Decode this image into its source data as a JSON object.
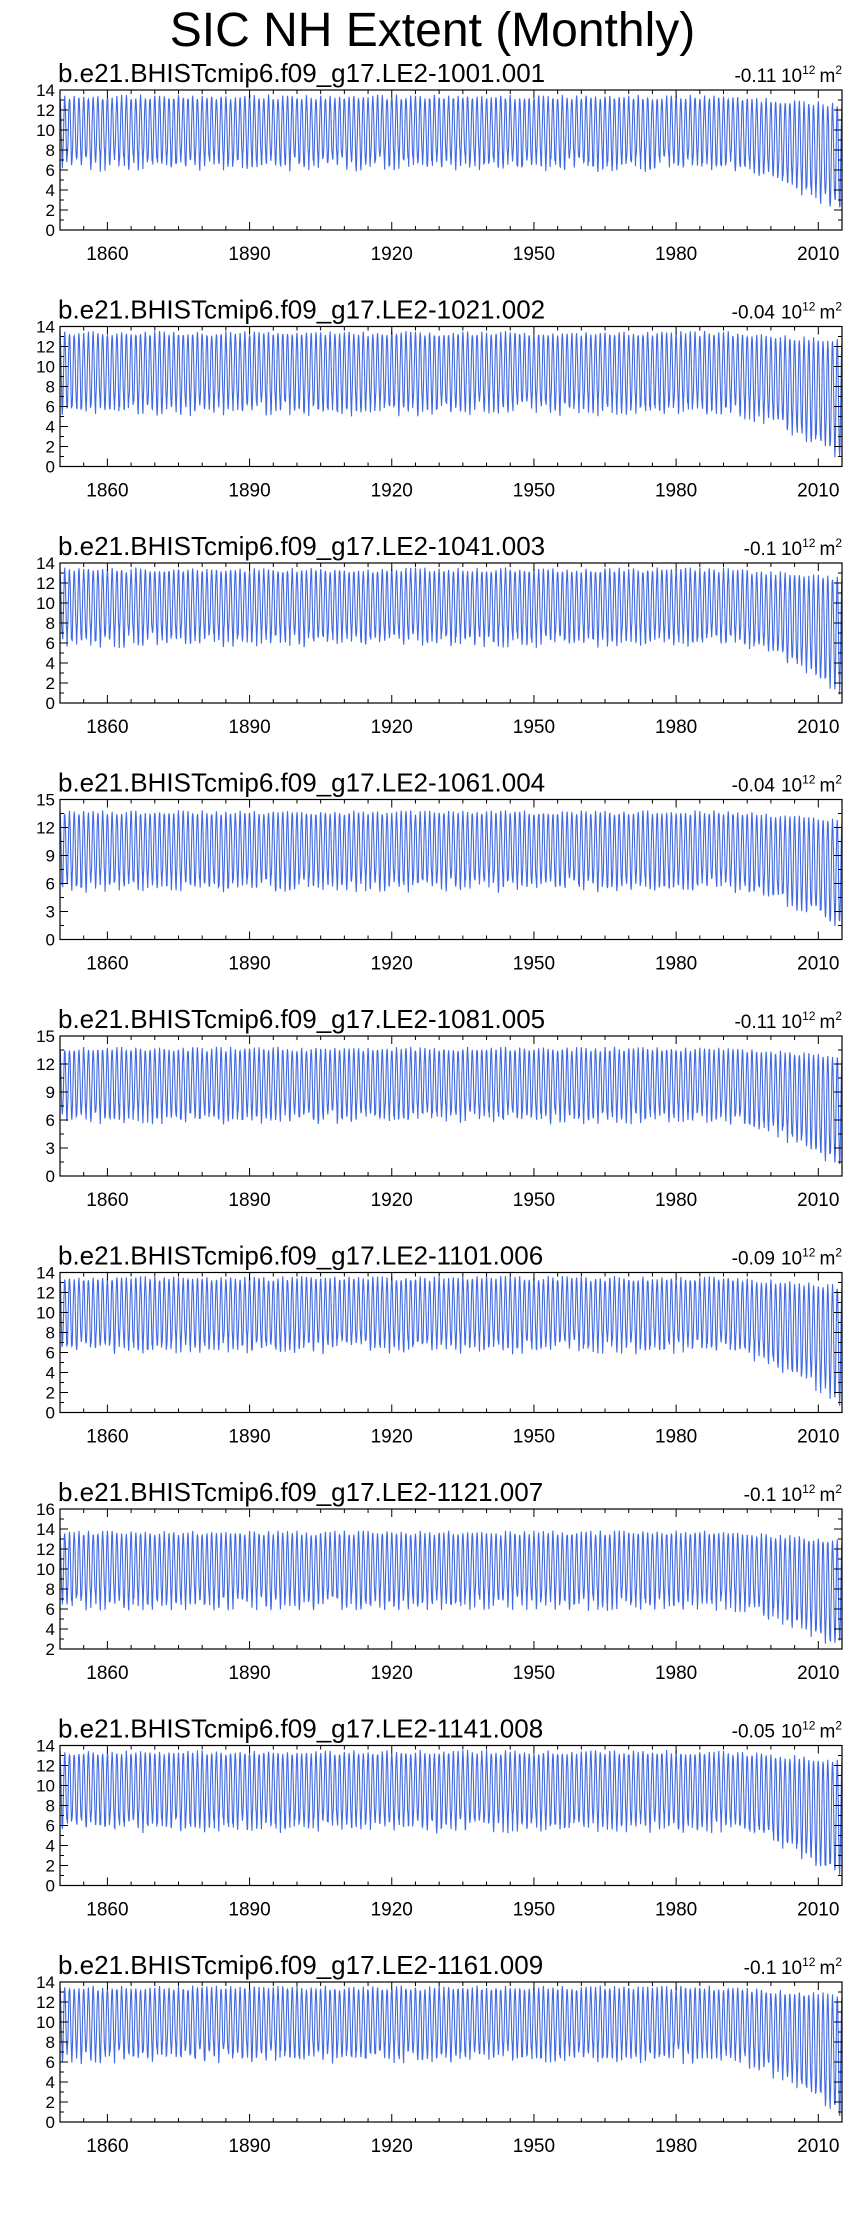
{
  "page_title": "SIC NH Extent (Monthly)",
  "colors": {
    "series": "#4169e1",
    "axis": "#000000",
    "background": "#ffffff"
  },
  "chart_data": [
    {
      "type": "line",
      "title": "b.e21.BHISTcmip6.f09_g17.LE2-1001.001",
      "trend": "-0.11",
      "trend_unit_base": "10",
      "trend_unit_exp": "12",
      "trend_unit_tail": "m",
      "trend_unit_tail_exp": "2",
      "xlim": [
        1850,
        2015
      ],
      "xticks": [
        "1860",
        "1890",
        "1920",
        "1950",
        "1980",
        "2010"
      ],
      "ylim": [
        0,
        14
      ],
      "yticks": [
        "0",
        "2",
        "4",
        "6",
        "8",
        "10",
        "12",
        "14"
      ],
      "series": [
        {
          "max": 13.3,
          "min_early": 6.6,
          "min_late": 2.0,
          "values_note": ""
        }
      ]
    },
    {
      "type": "line",
      "title": "b.e21.BHISTcmip6.f09_g17.LE2-1021.002",
      "trend": "-0.04",
      "trend_unit_base": "10",
      "trend_unit_exp": "12",
      "trend_unit_tail": "m",
      "trend_unit_tail_exp": "2",
      "xlim": [
        1850,
        2015
      ],
      "xticks": [
        "1860",
        "1890",
        "1920",
        "1950",
        "1980",
        "2010"
      ],
      "ylim": [
        0,
        14
      ],
      "yticks": [
        "0",
        "2",
        "4",
        "6",
        "8",
        "10",
        "12",
        "14"
      ],
      "series": [
        {
          "max": 13.3,
          "min_early": 5.8,
          "min_late": 1.2
        }
      ]
    },
    {
      "type": "line",
      "title": "b.e21.BHISTcmip6.f09_g17.LE2-1041.003",
      "trend": "-0.1",
      "trend_unit_base": "10",
      "trend_unit_exp": "12",
      "trend_unit_tail": "m",
      "trend_unit_tail_exp": "2",
      "xlim": [
        1850,
        2015
      ],
      "xticks": [
        "1860",
        "1890",
        "1920",
        "1950",
        "1980",
        "2010"
      ],
      "ylim": [
        0,
        14
      ],
      "yticks": [
        "0",
        "2",
        "4",
        "6",
        "8",
        "10",
        "12",
        "14"
      ],
      "series": [
        {
          "max": 13.3,
          "min_early": 6.3,
          "min_late": 1.5
        }
      ]
    },
    {
      "type": "line",
      "title": "b.e21.BHISTcmip6.f09_g17.LE2-1061.004",
      "trend": "-0.04",
      "trend_unit_base": "10",
      "trend_unit_exp": "12",
      "trend_unit_tail": "m",
      "trend_unit_tail_exp": "2",
      "xlim": [
        1850,
        2015
      ],
      "xticks": [
        "1860",
        "1890",
        "1920",
        "1950",
        "1980",
        "2010"
      ],
      "ylim": [
        0,
        15
      ],
      "yticks": [
        "0",
        "3",
        "6",
        "9",
        "12",
        "15"
      ],
      "series": [
        {
          "max": 13.6,
          "min_early": 5.8,
          "min_late": 1.5
        }
      ]
    },
    {
      "type": "line",
      "title": "b.e21.BHISTcmip6.f09_g17.LE2-1081.005",
      "trend": "-0.11",
      "trend_unit_base": "10",
      "trend_unit_exp": "12",
      "trend_unit_tail": "m",
      "trend_unit_tail_exp": "2",
      "xlim": [
        1850,
        2015
      ],
      "xticks": [
        "1860",
        "1890",
        "1920",
        "1950",
        "1980",
        "2010"
      ],
      "ylim": [
        0,
        15
      ],
      "yticks": [
        "0",
        "3",
        "6",
        "9",
        "12",
        "15"
      ],
      "series": [
        {
          "max": 13.6,
          "min_early": 6.3,
          "min_late": 1.3
        }
      ]
    },
    {
      "type": "line",
      "title": "b.e21.BHISTcmip6.f09_g17.LE2-1101.006",
      "trend": "-0.09",
      "trend_unit_base": "10",
      "trend_unit_exp": "12",
      "trend_unit_tail": "m",
      "trend_unit_tail_exp": "2",
      "xlim": [
        1850,
        2015
      ],
      "xticks": [
        "1860",
        "1890",
        "1920",
        "1950",
        "1980",
        "2010"
      ],
      "ylim": [
        0,
        14
      ],
      "yticks": [
        "0",
        "2",
        "4",
        "6",
        "8",
        "10",
        "12",
        "14"
      ],
      "series": [
        {
          "max": 13.4,
          "min_early": 6.6,
          "min_late": 1.2
        }
      ]
    },
    {
      "type": "line",
      "title": "b.e21.BHISTcmip6.f09_g17.LE2-1121.007",
      "trend": "-0.1",
      "trend_unit_base": "10",
      "trend_unit_exp": "12",
      "trend_unit_tail": "m",
      "trend_unit_tail_exp": "2",
      "xlim": [
        1850,
        2015
      ],
      "xticks": [
        "1860",
        "1890",
        "1920",
        "1950",
        "1980",
        "2010"
      ],
      "ylim": [
        2,
        16
      ],
      "yticks": [
        "2",
        "4",
        "6",
        "8",
        "10",
        "12",
        "14",
        "16"
      ],
      "series": [
        {
          "max": 13.6,
          "min_early": 6.6,
          "min_late": 2.3
        }
      ]
    },
    {
      "type": "line",
      "title": "b.e21.BHISTcmip6.f09_g17.LE2-1141.008",
      "trend": "-0.05",
      "trend_unit_base": "10",
      "trend_unit_exp": "12",
      "trend_unit_tail": "m",
      "trend_unit_tail_exp": "2",
      "xlim": [
        1850,
        2015
      ],
      "xticks": [
        "1860",
        "1890",
        "1920",
        "1950",
        "1980",
        "2010"
      ],
      "ylim": [
        0,
        14
      ],
      "yticks": [
        "0",
        "2",
        "4",
        "6",
        "8",
        "10",
        "12",
        "14"
      ],
      "series": [
        {
          "max": 13.3,
          "min_early": 6.0,
          "min_late": 1.0
        }
      ]
    },
    {
      "type": "line",
      "title": "b.e21.BHISTcmip6.f09_g17.LE2-1161.009",
      "trend": "-0.1",
      "trend_unit_base": "10",
      "trend_unit_exp": "12",
      "trend_unit_tail": "m",
      "trend_unit_tail_exp": "2",
      "xlim": [
        1850,
        2015
      ],
      "xticks": [
        "1860",
        "1890",
        "1920",
        "1950",
        "1980",
        "2010"
      ],
      "ylim": [
        0,
        14
      ],
      "yticks": [
        "0",
        "2",
        "4",
        "6",
        "8",
        "10",
        "12",
        "14"
      ],
      "series": [
        {
          "max": 13.4,
          "min_early": 6.6,
          "min_late": 1.0
        }
      ]
    }
  ]
}
